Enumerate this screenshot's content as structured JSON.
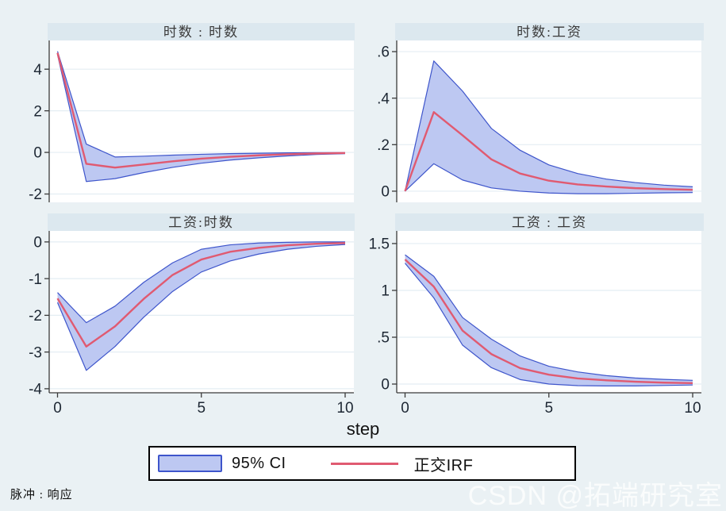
{
  "figure": {
    "xlabel": "step",
    "note": "脉冲 : 响应"
  },
  "legend": {
    "ci_label": "95% CI",
    "irf_label": "正交IRF"
  },
  "watermark": {
    "text": "CSDN @拓端研究室"
  },
  "colors": {
    "background": "#eaf1f4",
    "strip": "#dce8ef",
    "plot_bg": "#ffffff",
    "grid": "#e4edf3",
    "axis": "#3a3a3a",
    "tick_text": "#1d2733",
    "band_fill": "#bdc8f2",
    "band_edge": "#3e55cb",
    "irf_line": "#e05a71"
  },
  "chart_data": {
    "type": "line",
    "title": "Orthogonalized IRF panels (impulse : response)",
    "xlabel": "step",
    "xlim": [
      0,
      10
    ],
    "x": [
      0,
      1,
      2,
      3,
      4,
      5,
      6,
      7,
      8,
      9,
      10
    ],
    "xticks": [
      {
        "v": 0,
        "label": "0"
      },
      {
        "v": 5,
        "label": "5"
      },
      {
        "v": 10,
        "label": "10"
      }
    ],
    "legend_entries": [
      "95% CI",
      "正交IRF"
    ],
    "legend_position": "bottom-center",
    "grid": true,
    "panels": [
      {
        "title": "时数 : 时数",
        "ylim": [
          -2.4,
          5.38
        ],
        "yticks": [
          {
            "v": -2,
            "label": "-2"
          },
          {
            "v": 0,
            "label": "0"
          },
          {
            "v": 2,
            "label": "2"
          },
          {
            "v": 4,
            "label": "4"
          }
        ],
        "x_labels_visible": false,
        "irf": [
          4.78,
          -0.55,
          -0.73,
          -0.58,
          -0.43,
          -0.3,
          -0.21,
          -0.14,
          -0.09,
          -0.05,
          -0.03
        ],
        "ci_upper": [
          4.86,
          0.4,
          -0.22,
          -0.18,
          -0.13,
          -0.09,
          -0.06,
          -0.04,
          -0.02,
          -0.01,
          -0.01
        ],
        "ci_lower": [
          4.7,
          -1.4,
          -1.26,
          -0.97,
          -0.72,
          -0.52,
          -0.37,
          -0.26,
          -0.17,
          -0.1,
          -0.06
        ]
      },
      {
        "title": "时数:工资",
        "ylim": [
          -0.048,
          0.648
        ],
        "yticks": [
          {
            "v": 0,
            "label": "0"
          },
          {
            "v": 0.2,
            "label": ".2"
          },
          {
            "v": 0.4,
            "label": ".4"
          },
          {
            "v": 0.6,
            "label": ".6"
          }
        ],
        "x_labels_visible": false,
        "irf": [
          0,
          0.34,
          0.24,
          0.137,
          0.076,
          0.045,
          0.029,
          0.02,
          0.013,
          0.009,
          0.006
        ],
        "ci_upper": [
          0,
          0.56,
          0.43,
          0.27,
          0.176,
          0.113,
          0.076,
          0.052,
          0.037,
          0.026,
          0.019
        ],
        "ci_lower": [
          0,
          0.118,
          0.048,
          0.014,
          0.0,
          -0.008,
          -0.011,
          -0.011,
          -0.009,
          -0.007,
          -0.006
        ]
      },
      {
        "title": "工资:时数",
        "ylim": [
          -4.11,
          0.3
        ],
        "yticks": [
          {
            "v": 0,
            "label": "0"
          },
          {
            "v": -1,
            "label": "-1"
          },
          {
            "v": -2,
            "label": "-2"
          },
          {
            "v": -3,
            "label": "-3"
          },
          {
            "v": -4,
            "label": "-4"
          }
        ],
        "x_labels_visible": true,
        "irf": [
          -1.54,
          -2.85,
          -2.3,
          -1.55,
          -0.9,
          -0.48,
          -0.27,
          -0.16,
          -0.09,
          -0.05,
          -0.03
        ],
        "ci_upper": [
          -1.38,
          -2.2,
          -1.75,
          -1.1,
          -0.57,
          -0.2,
          -0.08,
          -0.03,
          -0.01,
          0.0,
          0.0
        ],
        "ci_lower": [
          -1.65,
          -3.5,
          -2.85,
          -2.05,
          -1.35,
          -0.82,
          -0.52,
          -0.33,
          -0.2,
          -0.12,
          -0.07
        ]
      },
      {
        "title": "工资 : 工资",
        "ylim": [
          -0.093,
          1.635
        ],
        "yticks": [
          {
            "v": 0,
            "label": "0"
          },
          {
            "v": 0.5,
            "label": ".5"
          },
          {
            "v": 1,
            "label": "1"
          },
          {
            "v": 1.5,
            "label": "1.5"
          }
        ],
        "x_labels_visible": true,
        "irf": [
          1.33,
          1.04,
          0.57,
          0.32,
          0.17,
          0.1,
          0.06,
          0.04,
          0.025,
          0.015,
          0.01
        ],
        "ci_upper": [
          1.38,
          1.15,
          0.71,
          0.48,
          0.3,
          0.19,
          0.13,
          0.09,
          0.065,
          0.05,
          0.04
        ],
        "ci_lower": [
          1.29,
          0.92,
          0.415,
          0.175,
          0.048,
          0.0,
          -0.017,
          -0.02,
          -0.02,
          -0.015,
          -0.01
        ]
      }
    ]
  }
}
